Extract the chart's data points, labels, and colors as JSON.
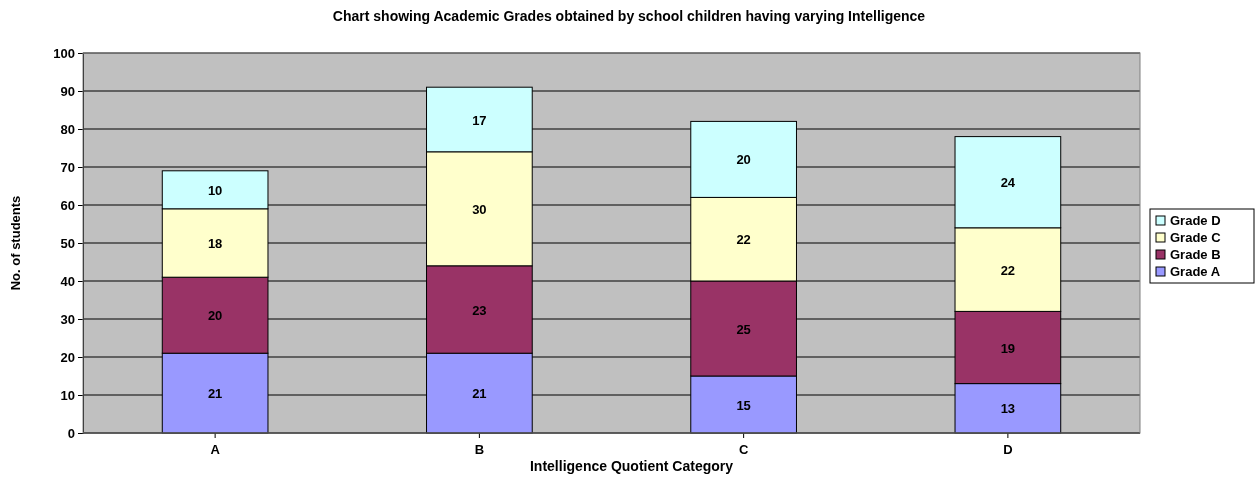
{
  "chart_data": {
    "type": "bar",
    "title": "Chart showing Academic Grades obtained by school children having varying Intelligence",
    "xlabel": "Intelligence Quotient Category",
    "ylabel": "No. of students",
    "categories": [
      "A",
      "B",
      "C",
      "D"
    ],
    "series": [
      {
        "name": "Grade A",
        "color": "#9999ff",
        "values": [
          21,
          21,
          15,
          13
        ]
      },
      {
        "name": "Grade B",
        "color": "#993366",
        "values": [
          20,
          23,
          25,
          19
        ]
      },
      {
        "name": "Grade C",
        "color": "#ffffcc",
        "values": [
          18,
          30,
          22,
          22
        ]
      },
      {
        "name": "Grade D",
        "color": "#ccffff",
        "values": [
          10,
          17,
          20,
          24
        ]
      }
    ],
    "stacked": true,
    "ylim": [
      0,
      100
    ],
    "yticks": [
      0,
      10,
      20,
      30,
      40,
      50,
      60,
      70,
      80,
      90,
      100
    ],
    "grid": "y",
    "legend": "right",
    "data_labels": true
  }
}
